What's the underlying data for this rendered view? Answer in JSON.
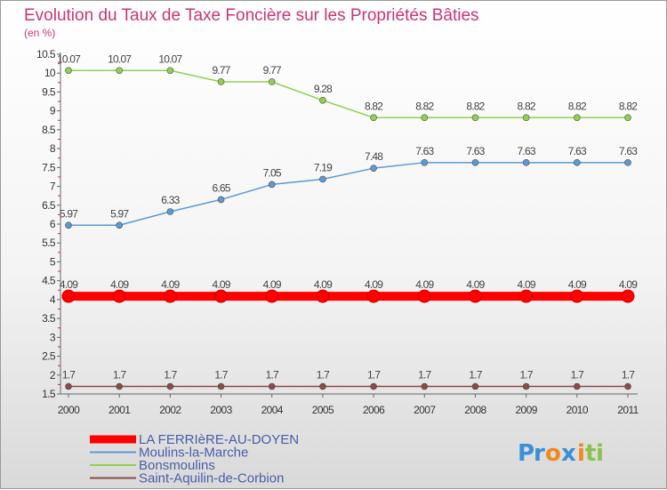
{
  "chart_data": {
    "type": "line",
    "title": "Evolution du Taux de Taxe Foncière sur les Propriétés Bâties",
    "subtitle": "(en %)",
    "xlabel": "",
    "ylabel": "",
    "categories": [
      "2000",
      "2001",
      "2002",
      "2003",
      "2004",
      "2005",
      "2006",
      "2007",
      "2008",
      "2009",
      "2010",
      "2011"
    ],
    "ylim": [
      1.5,
      10.5
    ],
    "yticks": [
      "1.5",
      "2",
      "2.5",
      "3",
      "3.5",
      "4",
      "4.5",
      "5",
      "5.5",
      "6",
      "6.5",
      "7",
      "7.5",
      "8",
      "8.5",
      "9",
      "9.5",
      "10",
      "10.5"
    ],
    "grid": false,
    "legend_position": "bottom-left",
    "series": [
      {
        "name": "LA FERRIèRE-AU-DOYEN",
        "color": "#ff0000",
        "values": [
          4.09,
          4.09,
          4.09,
          4.09,
          4.09,
          4.09,
          4.09,
          4.09,
          4.09,
          4.09,
          4.09,
          4.09
        ],
        "labels": [
          "4.09",
          "4.09",
          "4.09",
          "4.09",
          "4.09",
          "4.09",
          "4.09",
          "4.09",
          "4.09",
          "4.09",
          "4.09",
          "4.09"
        ]
      },
      {
        "name": "Moulins-la-Marche",
        "color": "#5b9bd5",
        "values": [
          5.97,
          5.97,
          6.33,
          6.65,
          7.05,
          7.19,
          7.48,
          7.63,
          7.63,
          7.63,
          7.63,
          7.63
        ],
        "labels": [
          "5.97",
          "5.97",
          "6.33",
          "6.65",
          "7.05",
          "7.19",
          "7.48",
          "7.63",
          "7.63",
          "7.63",
          "7.63",
          "7.63"
        ]
      },
      {
        "name": "Bonsmoulins",
        "color": "#92d050",
        "values": [
          10.07,
          10.07,
          10.07,
          9.77,
          9.77,
          9.28,
          8.82,
          8.82,
          8.82,
          8.82,
          8.82,
          8.82
        ],
        "labels": [
          "10.07",
          "10.07",
          "10.07",
          "9.77",
          "9.77",
          "9.28",
          "8.82",
          "8.82",
          "8.82",
          "8.82",
          "8.82",
          "8.82"
        ]
      },
      {
        "name": "Saint-Aquilin-de-Corbion",
        "color": "#8b4a4a",
        "values": [
          1.7,
          1.7,
          1.7,
          1.7,
          1.7,
          1.7,
          1.7,
          1.7,
          1.7,
          1.7,
          1.7,
          1.7
        ],
        "labels": [
          "1.7",
          "1.7",
          "1.7",
          "1.7",
          "1.7",
          "1.7",
          "1.7",
          "1.7",
          "1.7",
          "1.7",
          "1.7",
          "1.7"
        ]
      }
    ]
  },
  "logo": {
    "text": [
      "P",
      "r",
      "o",
      "x",
      "i",
      "t",
      "i"
    ],
    "colors": [
      "#3a8fd8",
      "#3a8fd8",
      "#f08a1c",
      "#3a8fd8",
      "#f08a1c",
      "#8bc34a",
      "#8bc34a"
    ]
  }
}
